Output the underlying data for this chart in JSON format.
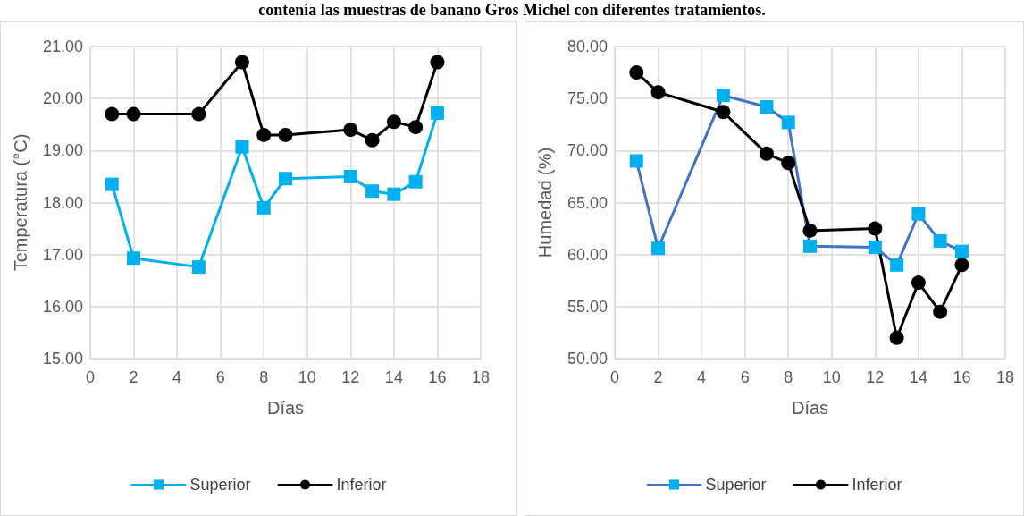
{
  "chart_data": [
    {
      "type": "line",
      "xlabel": "Días",
      "ylabel": "Temperatura (°C)",
      "annotations": [
        "contenía las muestras de banano Gros Michel con diferentes tratamientos."
      ],
      "x": [
        1,
        2,
        5,
        7,
        8,
        9,
        12,
        13,
        14,
        15,
        16
      ],
      "series": [
        {
          "name": "Superior",
          "color": "#00b0f0",
          "marker": "square",
          "values": [
            18.35,
            16.93,
            16.76,
            19.07,
            17.9,
            18.46,
            18.5,
            18.22,
            18.16,
            18.4,
            19.72
          ]
        },
        {
          "name": "Inferior",
          "color": "#000000",
          "marker": "circle",
          "values": [
            19.7,
            19.7,
            19.7,
            20.7,
            19.3,
            19.3,
            19.4,
            19.2,
            19.55,
            19.45,
            20.7
          ]
        }
      ],
      "xlim": [
        0,
        18
      ],
      "xticks": [
        0,
        2,
        4,
        6,
        8,
        10,
        12,
        14,
        16,
        18
      ],
      "ylim": [
        15,
        21
      ],
      "yticks": [
        {
          "value": 15,
          "label": "15.00"
        },
        {
          "value": 16,
          "label": "16.00"
        },
        {
          "value": 17,
          "label": "17.00"
        },
        {
          "value": 18,
          "label": "18.00"
        },
        {
          "value": 19,
          "label": "19.00"
        },
        {
          "value": 20,
          "label": "20.00"
        },
        {
          "value": 21,
          "label": "21.00"
        }
      ],
      "grid": true,
      "legend": "bottom"
    },
    {
      "type": "line",
      "xlabel": "Días",
      "ylabel": "Humedad (%)",
      "x": [
        1,
        2,
        5,
        7,
        8,
        9,
        12,
        13,
        14,
        15,
        16
      ],
      "series": [
        {
          "name": "Superior",
          "color": "#4472c4",
          "marker": "square",
          "values": [
            69.0,
            60.6,
            75.3,
            74.2,
            72.7,
            60.8,
            60.7,
            59.0,
            63.9,
            61.3,
            60.3
          ]
        },
        {
          "name": "Inferior",
          "color": "#000000",
          "marker": "circle",
          "values": [
            77.5,
            75.6,
            73.7,
            69.7,
            68.8,
            62.3,
            62.5,
            52.0,
            57.3,
            54.5,
            59.0
          ]
        }
      ],
      "xlim": [
        0,
        18
      ],
      "xticks": [
        0,
        2,
        4,
        6,
        8,
        10,
        12,
        14,
        16,
        18
      ],
      "ylim": [
        50,
        80
      ],
      "yticks": [
        {
          "value": 50,
          "label": "50.00"
        },
        {
          "value": 55,
          "label": "55.00"
        },
        {
          "value": 60,
          "label": "60.00"
        },
        {
          "value": 65,
          "label": "65.00"
        },
        {
          "value": 70,
          "label": "70.00"
        },
        {
          "value": 75,
          "label": "75.00"
        },
        {
          "value": 80,
          "label": "80.00"
        }
      ],
      "grid": true,
      "legend": "bottom"
    }
  ]
}
